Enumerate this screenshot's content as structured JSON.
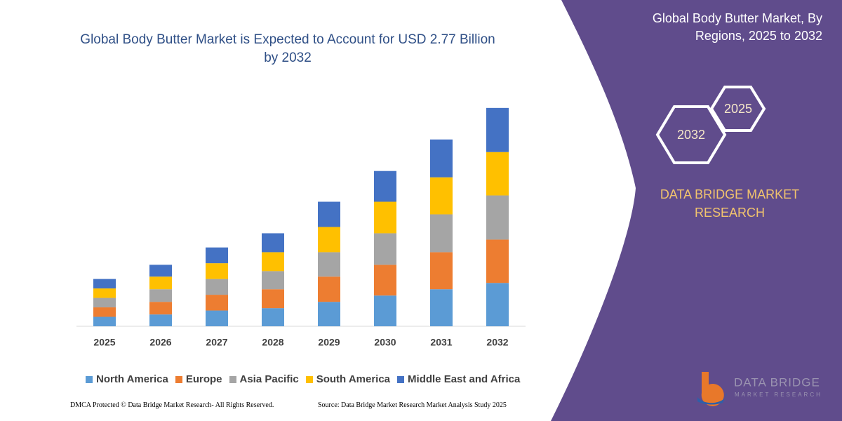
{
  "chart_data": {
    "type": "stacked-bar",
    "title": "Global Body Butter Market is Expected to Account for USD 2.77 Billion by 2032",
    "categories": [
      "2025",
      "2026",
      "2027",
      "2028",
      "2029",
      "2030",
      "2031",
      "2032"
    ],
    "series": [
      {
        "name": "North America",
        "color": "#5b9bd5",
        "values": [
          0.12,
          0.15,
          0.2,
          0.23,
          0.31,
          0.39,
          0.47,
          0.55
        ]
      },
      {
        "name": "Europe",
        "color": "#ed7d31",
        "values": [
          0.12,
          0.16,
          0.2,
          0.24,
          0.32,
          0.39,
          0.47,
          0.55
        ]
      },
      {
        "name": "Asia Pacific",
        "color": "#a5a5a5",
        "values": [
          0.12,
          0.16,
          0.2,
          0.23,
          0.31,
          0.4,
          0.48,
          0.56
        ]
      },
      {
        "name": "South America",
        "color": "#ffc000",
        "values": [
          0.12,
          0.16,
          0.2,
          0.24,
          0.32,
          0.4,
          0.47,
          0.55
        ]
      },
      {
        "name": "Middle East and Africa",
        "color": "#4472c4",
        "values": [
          0.12,
          0.15,
          0.2,
          0.24,
          0.32,
          0.39,
          0.48,
          0.56
        ]
      }
    ],
    "ylim": [
      0,
      3
    ]
  },
  "footer": {
    "left": "DMCA Protected © Data Bridge Market Research-  All Rights Reserved.",
    "right": "Source: Data Bridge Market Research  Market Analysis Study 2025"
  },
  "panel": {
    "title": "Global Body Butter Market, By Regions, 2025 to 2032",
    "hex_small": "2025",
    "hex_large": "2032",
    "brand": "DATA BRIDGE MARKET RESEARCH",
    "logo_name": "DATA BRIDGE",
    "logo_sub": "MARKET RESEARCH"
  }
}
